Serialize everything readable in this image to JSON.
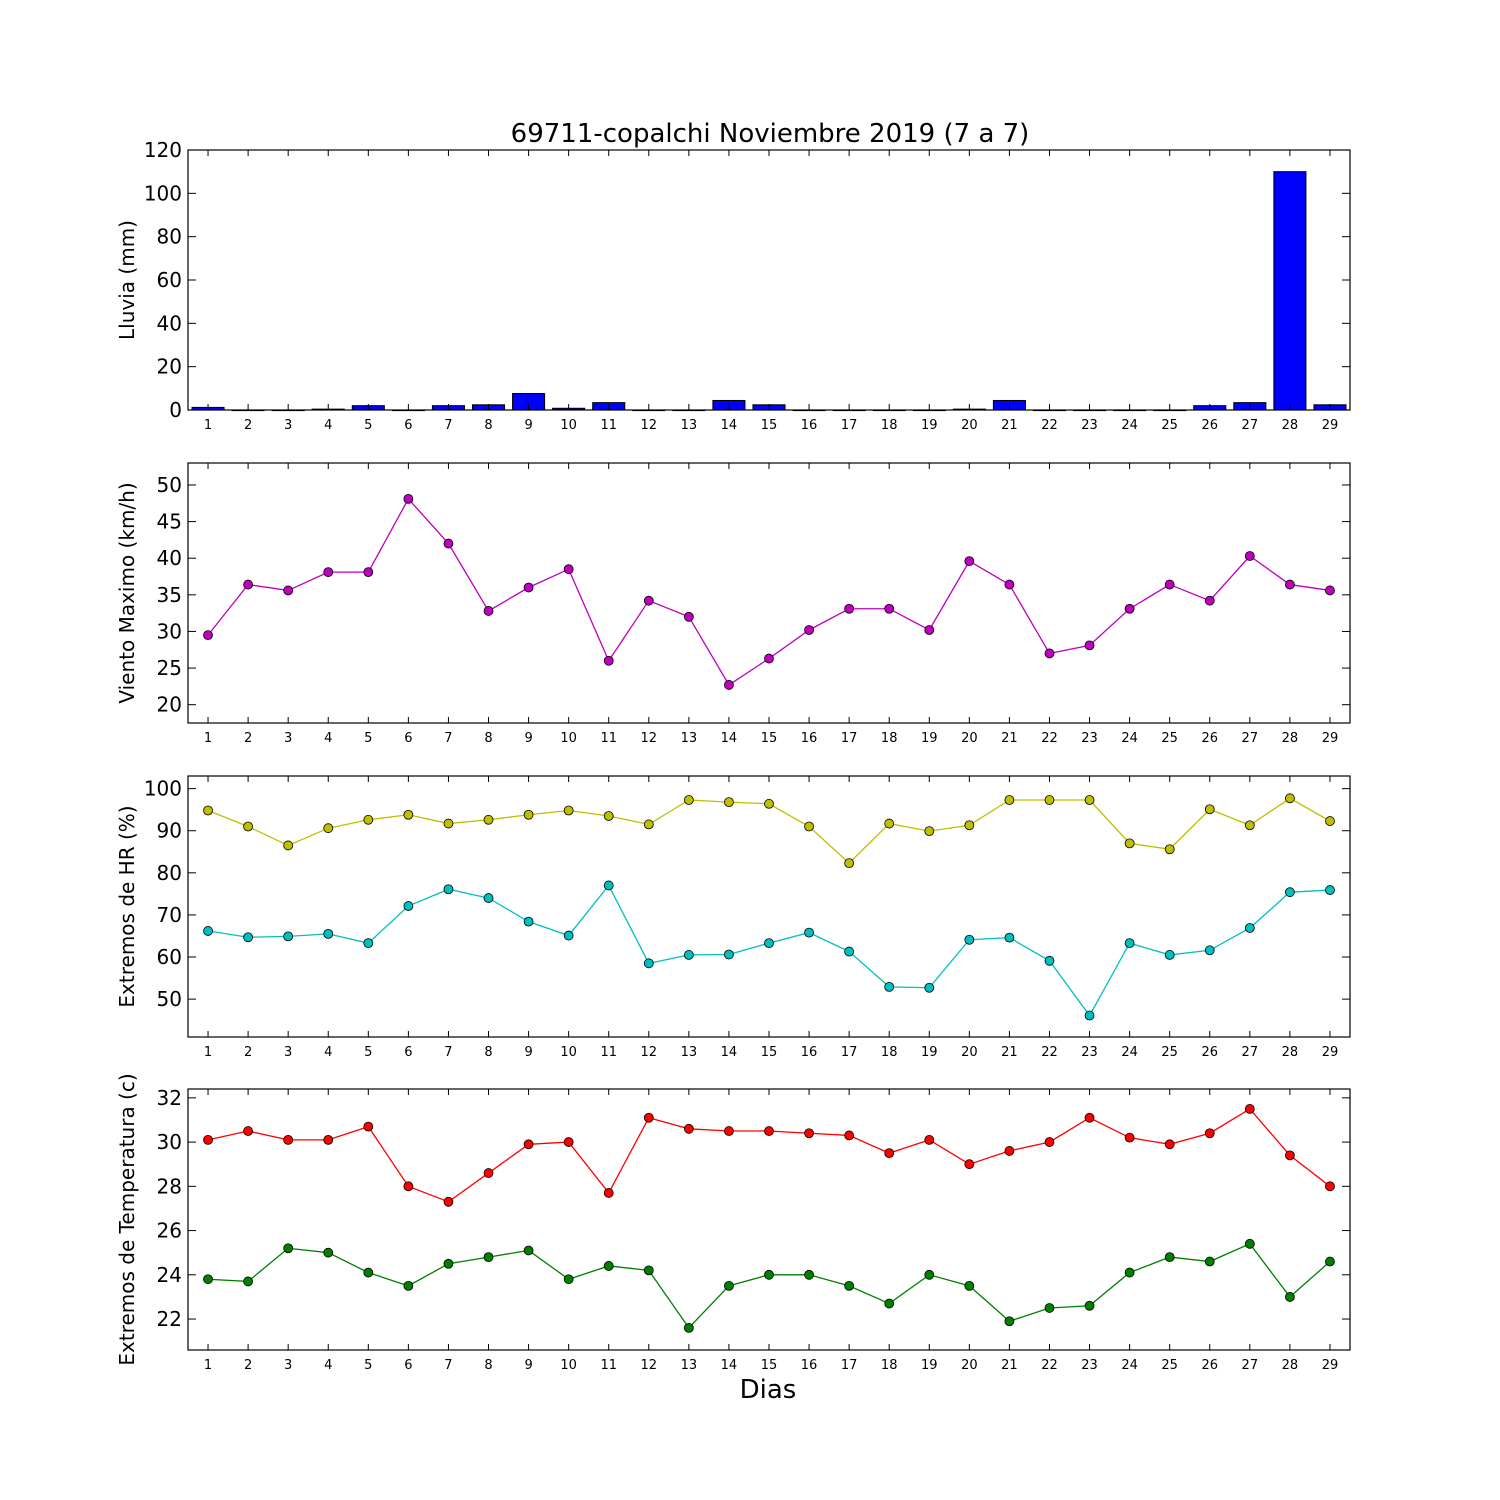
{
  "title": "69711-copalchi Noviembre 2019  (7 a 7)",
  "xlabel": "Dias",
  "days": [
    1,
    2,
    3,
    4,
    5,
    6,
    7,
    8,
    9,
    10,
    11,
    12,
    13,
    14,
    15,
    16,
    17,
    18,
    19,
    20,
    21,
    22,
    23,
    24,
    25,
    26,
    27,
    28,
    29
  ],
  "chart_data": [
    {
      "type": "bar",
      "ylabel": "Lluvia (mm)",
      "ylim": [
        0,
        120
      ],
      "yticks": [
        0,
        20,
        40,
        60,
        80,
        100,
        120
      ],
      "series": [
        {
          "color": "#0000ff",
          "values": [
            1.2,
            0,
            0,
            0.4,
            2,
            0,
            2,
            2.4,
            7.6,
            0.8,
            3.4,
            0,
            0,
            4.4,
            2.4,
            0,
            0,
            0,
            0,
            0.4,
            4.4,
            0,
            0,
            0,
            0,
            2,
            3.4,
            110,
            2.4
          ]
        }
      ]
    },
    {
      "type": "line",
      "ylabel": "Viento Maximo (km/h)",
      "ylim": [
        17.5,
        53
      ],
      "yticks": [
        20,
        25,
        30,
        35,
        40,
        45,
        50
      ],
      "series": [
        {
          "color": "#bf00bf",
          "values": [
            29.5,
            36.4,
            35.6,
            38.1,
            38.1,
            48.1,
            42,
            32.8,
            36,
            38.5,
            26,
            34.2,
            32,
            22.7,
            26.3,
            30.2,
            33.1,
            33.1,
            30.2,
            39.6,
            36.4,
            27,
            28.1,
            33.1,
            36.4,
            34.2,
            40.3,
            36.4,
            35.6
          ]
        }
      ]
    },
    {
      "type": "line",
      "ylabel": "Extremos de HR (%)",
      "ylim": [
        41,
        103
      ],
      "yticks": [
        50,
        60,
        70,
        80,
        90,
        100
      ],
      "series": [
        {
          "color": "#bfbf00",
          "values": [
            94.8,
            91,
            86.5,
            90.6,
            92.6,
            93.8,
            91.7,
            92.6,
            93.8,
            94.8,
            93.5,
            91.5,
            97.3,
            96.8,
            96.4,
            91,
            82.3,
            91.7,
            89.9,
            91.3,
            97.3,
            97.3,
            97.3,
            87,
            85.6,
            95.1,
            91.3,
            97.7,
            92.3
          ]
        },
        {
          "color": "#00bfbf",
          "values": [
            66.2,
            64.7,
            64.9,
            65.5,
            63.3,
            72.1,
            76.1,
            74,
            68.4,
            65.1,
            77,
            58.5,
            60.5,
            60.6,
            63.3,
            65.8,
            61.3,
            52.9,
            52.7,
            64.1,
            64.6,
            59.1,
            46.1,
            63.3,
            60.5,
            61.6,
            66.9,
            75.4,
            75.9
          ]
        }
      ]
    },
    {
      "type": "line",
      "ylabel": "Extremos de Temperatura (c)",
      "ylim": [
        20.6,
        32.4
      ],
      "yticks": [
        22,
        24,
        26,
        28,
        30,
        32
      ],
      "series": [
        {
          "color": "#ff0000",
          "values": [
            30.1,
            30.5,
            30.1,
            30.1,
            30.7,
            28,
            27.3,
            28.6,
            29.9,
            30,
            27.7,
            31.1,
            30.6,
            30.5,
            30.5,
            30.4,
            30.3,
            29.5,
            30.1,
            29,
            29.6,
            30,
            31.1,
            30.2,
            29.9,
            30.4,
            31.5,
            29.4,
            28
          ]
        },
        {
          "color": "#008000",
          "values": [
            23.8,
            23.7,
            25.2,
            25,
            24.1,
            23.5,
            24.5,
            24.8,
            25.1,
            23.8,
            24.4,
            24.2,
            21.6,
            23.5,
            24,
            24,
            23.5,
            22.7,
            24,
            23.5,
            21.9,
            22.5,
            22.6,
            24.1,
            24.8,
            24.6,
            25.4,
            23,
            24.6
          ]
        }
      ]
    }
  ]
}
